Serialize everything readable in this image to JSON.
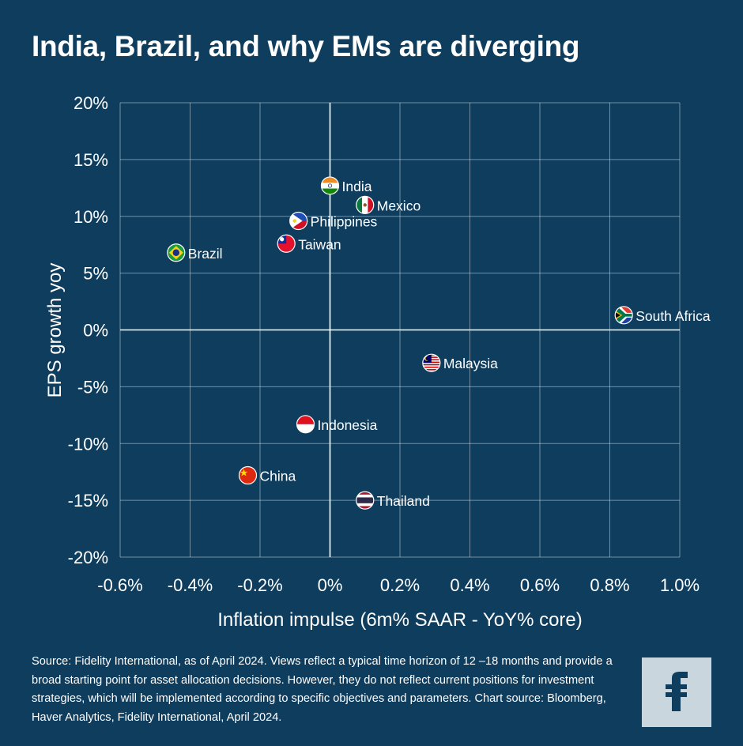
{
  "title": "India, Brazil, and why EMs are diverging",
  "source": "Source: Fidelity International, as of April 2024. Views reflect a typical time horizon of 12 –18 months and provide a broad starting point for asset allocation decisions. However, they do not reflect current positions for investment strategies, which will be implemented according to specific objectives and parameters. Chart source: Bloomberg, Haver Analytics, Fidelity International, April 2024.",
  "logo_icon": "fidelity-f-logo-icon",
  "colors": {
    "background": "#0f3d5e",
    "grid": "#ffffff",
    "logo_bg": "#c9d6dd",
    "logo_fg": "#0f3d5e"
  },
  "chart_data": {
    "type": "scatter",
    "xlabel": "Inflation impulse (6m% SAAR - YoY% core)",
    "ylabel": "EPS growth yoy",
    "xlim": [
      -0.6,
      1.0
    ],
    "ylim": [
      -20,
      20
    ],
    "x_ticks": [
      -0.6,
      -0.4,
      -0.2,
      0,
      0.2,
      0.4,
      0.6,
      0.8,
      1.0
    ],
    "x_tick_labels": [
      "-0.6%",
      "-0.4%",
      "-0.2%",
      "0%",
      "0.2%",
      "0.4%",
      "0.6%",
      "0.8%",
      "1.0%"
    ],
    "y_ticks": [
      20,
      15,
      10,
      5,
      0,
      -5,
      -10,
      -15,
      -20
    ],
    "y_tick_labels": [
      "20%",
      "15%",
      "10%",
      "5%",
      "0%",
      "-5%",
      "-10%",
      "-15%",
      "-20%"
    ],
    "grid": true,
    "points": [
      {
        "label": "India",
        "x": 0.0,
        "y": 12.7,
        "flag": "india-flag-icon"
      },
      {
        "label": "Mexico",
        "x": 0.1,
        "y": 11.0,
        "flag": "mexico-flag-icon"
      },
      {
        "label": "Philippines",
        "x": -0.09,
        "y": 9.6,
        "flag": "philippines-flag-icon"
      },
      {
        "label": "Taiwan",
        "x": -0.125,
        "y": 7.6,
        "flag": "taiwan-flag-icon"
      },
      {
        "label": "Brazil",
        "x": -0.44,
        "y": 6.8,
        "flag": "brazil-flag-icon"
      },
      {
        "label": "South Africa",
        "x": 0.84,
        "y": 1.3,
        "flag": "south-africa-flag-icon"
      },
      {
        "label": "Malaysia",
        "x": 0.29,
        "y": -2.9,
        "flag": "malaysia-flag-icon"
      },
      {
        "label": "Indonesia",
        "x": -0.07,
        "y": -8.3,
        "flag": "indonesia-flag-icon"
      },
      {
        "label": "China",
        "x": -0.235,
        "y": -12.8,
        "flag": "china-flag-icon"
      },
      {
        "label": "Thailand",
        "x": 0.1,
        "y": -15.0,
        "flag": "thailand-flag-icon"
      }
    ]
  }
}
